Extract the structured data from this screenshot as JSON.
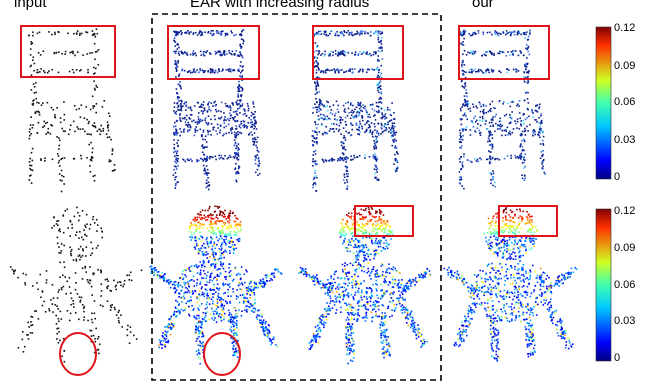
{
  "headers": {
    "input": "input",
    "ear": "EAR with increasing radius",
    "ours": "our"
  },
  "colorbar_ticks": [
    "0.12",
    "0.09",
    "0.06",
    "0.03",
    "0"
  ],
  "colors": {
    "highlight": "#e0151b",
    "point_black": "#111111",
    "point_navy": "#0a1f8f"
  },
  "colormap": "jet",
  "rows": [
    {
      "object": "chair",
      "panels": [
        "input point cloud",
        "EAR radius small",
        "EAR radius large",
        "our result"
      ],
      "highlight_boxes": 4
    },
    {
      "object": "octopus",
      "panels": [
        "input point cloud",
        "EAR radius small",
        "EAR radius large",
        "our result"
      ],
      "highlight_boxes": 2,
      "highlight_circles": 2
    }
  ]
}
